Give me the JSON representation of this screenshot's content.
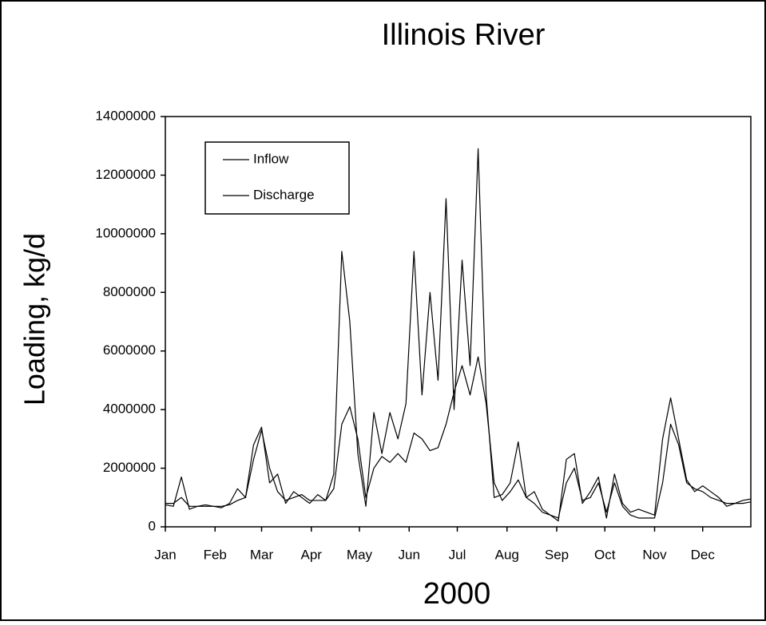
{
  "chart_data": {
    "type": "line",
    "title": "Illinois River",
    "xlabel": "2000",
    "ylabel": "Loading, kg/d",
    "x": [
      1,
      6,
      11,
      16,
      21,
      26,
      31,
      36,
      41,
      46,
      51,
      56,
      61,
      66,
      71,
      76,
      81,
      86,
      91,
      96,
      101,
      106,
      111,
      116,
      121,
      126,
      131,
      136,
      141,
      146,
      151,
      156,
      161,
      166,
      171,
      176,
      181,
      186,
      191,
      196,
      201,
      206,
      211,
      216,
      221,
      226,
      231,
      236,
      241,
      246,
      251,
      256,
      261,
      266,
      271,
      276,
      281,
      286,
      291,
      296,
      301,
      306,
      311,
      316,
      321,
      326,
      331,
      336,
      341,
      346,
      351,
      356,
      361,
      366
    ],
    "series": [
      {
        "name": "Inflow",
        "color": "#000000",
        "values": [
          750000,
          700000,
          1700000,
          600000,
          700000,
          700000,
          700000,
          650000,
          800000,
          1300000,
          1000000,
          2800000,
          3400000,
          1500000,
          1800000,
          800000,
          1200000,
          1000000,
          800000,
          1100000,
          900000,
          1800000,
          9400000,
          7000000,
          2500000,
          700000,
          3900000,
          2500000,
          3900000,
          3000000,
          4200000,
          9400000,
          4500000,
          8000000,
          5000000,
          11200000,
          4000000,
          9100000,
          5500000,
          12900000,
          4500000,
          1000000,
          1100000,
          1500000,
          2900000,
          1000000,
          1200000,
          600000,
          400000,
          200000,
          2300000,
          2500000,
          800000,
          1200000,
          1700000,
          300000,
          1800000,
          800000,
          500000,
          600000,
          500000,
          400000,
          3000000,
          4400000,
          3000000,
          1600000,
          1200000,
          1400000,
          1200000,
          1000000,
          700000,
          800000,
          900000,
          950000
        ]
      },
      {
        "name": "Discharge",
        "color": "#000000",
        "values": [
          800000,
          800000,
          1000000,
          700000,
          700000,
          750000,
          700000,
          700000,
          750000,
          900000,
          1000000,
          2300000,
          3300000,
          2000000,
          1200000,
          900000,
          1000000,
          1100000,
          900000,
          900000,
          900000,
          1300000,
          3500000,
          4100000,
          3000000,
          1000000,
          2000000,
          2400000,
          2200000,
          2500000,
          2200000,
          3200000,
          3000000,
          2600000,
          2700000,
          3500000,
          4600000,
          5500000,
          4500000,
          5800000,
          4200000,
          1500000,
          900000,
          1200000,
          1600000,
          1000000,
          800000,
          500000,
          400000,
          300000,
          1500000,
          2000000,
          900000,
          1000000,
          1500000,
          500000,
          1500000,
          700000,
          400000,
          300000,
          300000,
          300000,
          1500000,
          3500000,
          2800000,
          1500000,
          1300000,
          1200000,
          1000000,
          900000,
          800000,
          800000,
          800000,
          850000
        ]
      }
    ],
    "xlim": [
      1,
      366
    ],
    "xticks": [
      {
        "value": 1,
        "label": "Jan"
      },
      {
        "value": 32,
        "label": "Feb"
      },
      {
        "value": 61,
        "label": "Mar"
      },
      {
        "value": 92,
        "label": "Apr"
      },
      {
        "value": 122,
        "label": "May"
      },
      {
        "value": 153,
        "label": "Jun"
      },
      {
        "value": 183,
        "label": "Jul"
      },
      {
        "value": 214,
        "label": "Aug"
      },
      {
        "value": 245,
        "label": "Sep"
      },
      {
        "value": 275,
        "label": "Oct"
      },
      {
        "value": 306,
        "label": "Nov"
      },
      {
        "value": 336,
        "label": "Dec"
      }
    ],
    "ylim": [
      0,
      14000000
    ],
    "yticks": [
      0,
      2000000,
      4000000,
      6000000,
      8000000,
      10000000,
      12000000,
      14000000
    ],
    "legend": "upper-left",
    "grid": false
  }
}
